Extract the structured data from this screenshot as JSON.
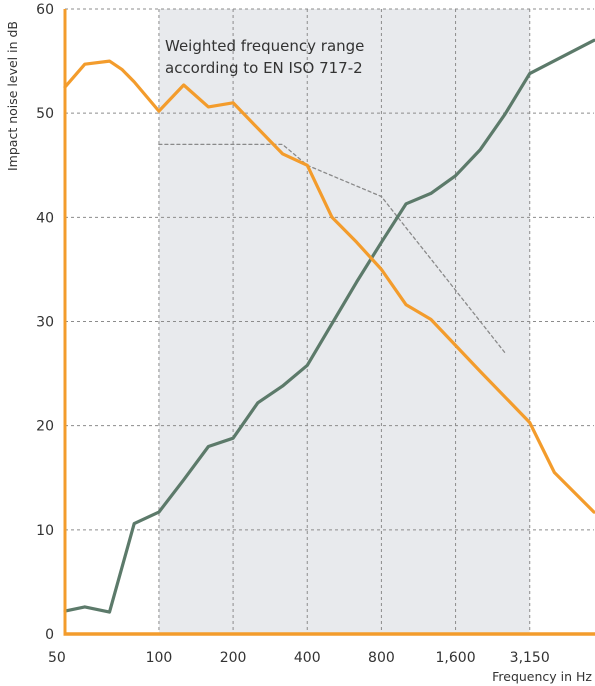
{
  "chart_data": {
    "type": "line",
    "xlabel": "Frequency in Hz",
    "ylabel": "Impact noise level in dB",
    "ylim": [
      0,
      60
    ],
    "yticks": [
      0,
      10,
      20,
      30,
      40,
      50,
      60
    ],
    "x_band_labels": [
      "50",
      "100",
      "200",
      "400",
      "800",
      "1,600",
      "3,150"
    ],
    "x_band_index": [
      0,
      3,
      6,
      9,
      12,
      15,
      18
    ],
    "band_range": [
      -0.8,
      20.6
    ],
    "grid": true,
    "shaded_region": {
      "from_band": 3,
      "to_band": 18,
      "label_lines": [
        "Weighted frequency range",
        "according to EN ISO 717-2"
      ]
    },
    "colors": {
      "orange": "#f39c2c",
      "green": "#5c7a6a",
      "reference": "#8a8a8a",
      "shade": "#e8eaed",
      "grid": "#8c8c8c"
    },
    "series": [
      {
        "color_key": "orange",
        "points": [
          [
            -0.8,
            52.5
          ],
          [
            0,
            54.7
          ],
          [
            1,
            55.0
          ],
          [
            1.5,
            54.2
          ],
          [
            2,
            53
          ],
          [
            3,
            50.2
          ],
          [
            4,
            52.7
          ],
          [
            5,
            50.6
          ],
          [
            6,
            51
          ],
          [
            8,
            46.1
          ],
          [
            9,
            45
          ],
          [
            10,
            40
          ],
          [
            11,
            37.6
          ],
          [
            12,
            35
          ],
          [
            13,
            31.6
          ],
          [
            14,
            30.2
          ],
          [
            16,
            25.2
          ],
          [
            18,
            20.3
          ],
          [
            19,
            15.5
          ],
          [
            20.6,
            11.7
          ]
        ]
      },
      {
        "color_key": "green",
        "points": [
          [
            -0.8,
            2.2
          ],
          [
            0,
            2.6
          ],
          [
            1,
            2.1
          ],
          [
            2,
            10.6
          ],
          [
            3,
            11.7
          ],
          [
            4,
            14.8
          ],
          [
            5,
            18.0
          ],
          [
            6,
            18.8
          ],
          [
            7,
            22.2
          ],
          [
            8,
            23.8
          ],
          [
            9,
            25.8
          ],
          [
            11,
            33.8
          ],
          [
            12,
            37.6
          ],
          [
            13,
            41.3
          ],
          [
            14,
            42.3
          ],
          [
            15,
            44
          ],
          [
            16,
            46.5
          ],
          [
            17,
            49.9
          ],
          [
            18,
            53.8
          ],
          [
            20.6,
            57.0
          ]
        ]
      },
      {
        "color_key": "reference",
        "dashed": true,
        "points": [
          [
            3,
            47
          ],
          [
            8,
            47
          ],
          [
            9,
            45
          ],
          [
            11,
            43
          ],
          [
            12,
            42
          ],
          [
            13,
            39
          ],
          [
            14,
            36
          ],
          [
            15,
            33
          ],
          [
            16,
            30
          ],
          [
            17,
            27
          ]
        ]
      }
    ]
  }
}
